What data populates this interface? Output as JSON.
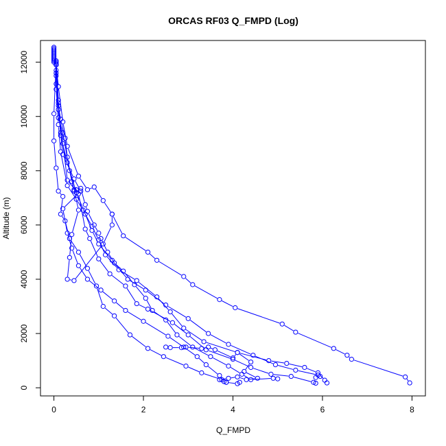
{
  "chart_data": {
    "type": "line",
    "title": "ORCAS RF03 Q_FMPD (Log)",
    "xlabel": "Q_FMPD",
    "ylabel": "Altitude (m)",
    "xlim": [
      -0.3,
      8.3
    ],
    "ylim": [
      -300,
      12800
    ],
    "xticks": [
      0,
      2,
      4,
      6,
      8
    ],
    "yticks": [
      0,
      2000,
      4000,
      6000,
      8000,
      10000,
      12000
    ],
    "grid": false,
    "series_color": "#0000ff",
    "series": [
      {
        "values": [
          [
            0.0,
            12550
          ],
          [
            0.0,
            12500
          ],
          [
            0.0,
            12450
          ],
          [
            0.0,
            12400
          ],
          [
            0.0,
            12350
          ],
          [
            0.0,
            12300
          ],
          [
            0.0,
            12250
          ],
          [
            0.0,
            12200
          ],
          [
            0.0,
            12150
          ],
          [
            0.0,
            12100
          ],
          [
            0.0,
            12050
          ],
          [
            0.0,
            12000
          ]
        ]
      },
      {
        "values": [
          [
            0.05,
            11900
          ],
          [
            0.05,
            11600
          ],
          [
            0.05,
            11200
          ],
          [
            0.1,
            10400
          ],
          [
            0.15,
            9900
          ],
          [
            0.25,
            9200
          ],
          [
            0.3,
            8500
          ],
          [
            0.4,
            7600
          ],
          [
            0.45,
            7250
          ],
          [
            0.5,
            7300
          ],
          [
            0.6,
            7350
          ],
          [
            0.7,
            6750
          ],
          [
            0.75,
            6500
          ],
          [
            0.9,
            6000
          ],
          [
            1.0,
            5700
          ],
          [
            1.05,
            5500
          ],
          [
            1.2,
            5000
          ],
          [
            1.35,
            4600
          ],
          [
            1.55,
            4300
          ],
          [
            1.8,
            3800
          ],
          [
            2.05,
            3300
          ],
          [
            2.2,
            2850
          ],
          [
            2.5,
            2500
          ],
          [
            2.75,
            1950
          ],
          [
            3.1,
            1500
          ],
          [
            3.5,
            1150
          ],
          [
            3.9,
            800
          ],
          [
            4.2,
            500
          ],
          [
            4.4,
            300
          ],
          [
            4.9,
            350
          ],
          [
            5.0,
            330
          ]
        ]
      },
      {
        "values": [
          [
            0.05,
            11900
          ],
          [
            0.1,
            11100
          ],
          [
            0.2,
            9800
          ],
          [
            0.3,
            8900
          ],
          [
            0.55,
            7800
          ],
          [
            0.75,
            7300
          ],
          [
            0.9,
            7400
          ],
          [
            1.1,
            6900
          ],
          [
            1.3,
            6400
          ],
          [
            1.55,
            5600
          ],
          [
            2.1,
            5000
          ],
          [
            2.3,
            4700
          ],
          [
            2.9,
            4100
          ],
          [
            3.1,
            3800
          ],
          [
            3.7,
            3250
          ],
          [
            4.05,
            2950
          ],
          [
            5.1,
            2350
          ],
          [
            5.4,
            2050
          ],
          [
            6.25,
            1450
          ],
          [
            6.55,
            1200
          ],
          [
            6.65,
            1050
          ],
          [
            7.85,
            400
          ],
          [
            7.95,
            180
          ]
        ]
      },
      {
        "values": [
          [
            0.05,
            12050
          ],
          [
            0.0,
            10100
          ],
          [
            0.0,
            9100
          ],
          [
            0.05,
            8100
          ],
          [
            0.1,
            7250
          ],
          [
            0.2,
            7050
          ],
          [
            0.15,
            6400
          ],
          [
            0.25,
            6150
          ],
          [
            0.35,
            5500
          ],
          [
            0.55,
            5000
          ],
          [
            0.75,
            4400
          ],
          [
            0.95,
            3750
          ],
          [
            1.1,
            3000
          ],
          [
            1.35,
            2650
          ],
          [
            1.7,
            1950
          ],
          [
            2.1,
            1450
          ],
          [
            2.45,
            1150
          ],
          [
            2.95,
            800
          ],
          [
            3.3,
            550
          ],
          [
            3.75,
            300
          ],
          [
            3.85,
            200
          ],
          [
            4.1,
            150
          ],
          [
            4.15,
            200
          ]
        ]
      },
      {
        "values": [
          [
            0.05,
            12000
          ],
          [
            0.1,
            10600
          ],
          [
            0.15,
            9400
          ],
          [
            0.2,
            8600
          ],
          [
            0.45,
            7700
          ],
          [
            0.6,
            7250
          ],
          [
            0.2,
            6600
          ],
          [
            0.3,
            5700
          ],
          [
            0.4,
            5150
          ],
          [
            0.55,
            4500
          ],
          [
            0.75,
            4000
          ],
          [
            1.05,
            3600
          ],
          [
            1.35,
            3200
          ],
          [
            1.6,
            2850
          ],
          [
            2.0,
            2450
          ],
          [
            2.55,
            1900
          ],
          [
            2.9,
            1500
          ],
          [
            3.2,
            1150
          ],
          [
            3.4,
            850
          ],
          [
            3.7,
            450
          ],
          [
            3.8,
            230
          ],
          [
            3.85,
            200
          ]
        ]
      },
      {
        "values": [
          [
            0.05,
            11700
          ],
          [
            0.1,
            10250
          ],
          [
            0.2,
            9000
          ],
          [
            0.3,
            7650
          ],
          [
            0.55,
            7150
          ],
          [
            0.7,
            5850
          ],
          [
            0.8,
            5500
          ],
          [
            1.0,
            4750
          ],
          [
            1.25,
            4200
          ],
          [
            1.6,
            3750
          ],
          [
            1.85,
            3100
          ],
          [
            2.1,
            2900
          ],
          [
            2.65,
            2400
          ],
          [
            3.0,
            1950
          ],
          [
            3.4,
            1400
          ],
          [
            4.0,
            1050
          ],
          [
            4.4,
            750
          ],
          [
            4.85,
            500
          ],
          [
            5.3,
            420
          ],
          [
            5.8,
            200
          ],
          [
            5.85,
            170
          ]
        ]
      },
      {
        "values": [
          [
            0.05,
            11500
          ],
          [
            0.1,
            9700
          ],
          [
            0.15,
            8700
          ],
          [
            0.3,
            7450
          ],
          [
            0.5,
            6950
          ],
          [
            0.65,
            6550
          ],
          [
            0.85,
            5950
          ],
          [
            1.0,
            5450
          ],
          [
            1.15,
            4900
          ],
          [
            1.45,
            4350
          ],
          [
            1.85,
            3950
          ],
          [
            2.3,
            3350
          ],
          [
            2.6,
            2800
          ],
          [
            2.9,
            2200
          ],
          [
            3.35,
            1700
          ],
          [
            4.1,
            1300
          ],
          [
            4.8,
            1000
          ],
          [
            5.2,
            900
          ],
          [
            5.6,
            750
          ],
          [
            5.9,
            550
          ],
          [
            6.05,
            280
          ],
          [
            6.1,
            180
          ]
        ]
      },
      {
        "values": [
          [
            0.05,
            11900
          ],
          [
            0.1,
            10500
          ],
          [
            0.15,
            9300
          ],
          [
            0.3,
            8300
          ],
          [
            0.5,
            7200
          ],
          [
            0.7,
            6400
          ],
          [
            0.85,
            5800
          ],
          [
            1.0,
            5300
          ],
          [
            1.3,
            4700
          ],
          [
            1.65,
            4000
          ],
          [
            2.05,
            3600
          ],
          [
            2.5,
            3050
          ],
          [
            3.0,
            2550
          ],
          [
            3.45,
            2000
          ],
          [
            3.9,
            1600
          ],
          [
            4.45,
            1200
          ],
          [
            4.95,
            850
          ],
          [
            5.4,
            650
          ],
          [
            5.9,
            470
          ],
          [
            5.95,
            420
          ],
          [
            5.85,
            380
          ]
        ]
      },
      {
        "values": [
          [
            0.05,
            11950
          ],
          [
            0.05,
            11000
          ],
          [
            0.1,
            9950
          ],
          [
            0.2,
            9400
          ],
          [
            0.35,
            8000
          ],
          [
            0.45,
            7300
          ],
          [
            0.55,
            6550
          ],
          [
            0.4,
            5650
          ],
          [
            0.35,
            4800
          ],
          [
            0.3,
            4000
          ],
          [
            0.45,
            3950
          ],
          [
            1.1,
            5300
          ],
          [
            1.3,
            6000
          ],
          [
            1.3,
            6400
          ]
        ]
      },
      {
        "values": [
          [
            2.5,
            1500
          ],
          [
            2.6,
            1480
          ],
          [
            2.85,
            1480
          ],
          [
            2.95,
            1500
          ],
          [
            3.3,
            1450
          ],
          [
            3.45,
            1500
          ],
          [
            3.6,
            1400
          ],
          [
            4.0,
            1100
          ],
          [
            4.1,
            1300
          ],
          [
            4.4,
            950
          ],
          [
            4.25,
            600
          ],
          [
            4.55,
            350
          ],
          [
            4.3,
            300
          ],
          [
            4.1,
            400
          ],
          [
            3.9,
            350
          ],
          [
            3.7,
            300
          ]
        ]
      }
    ]
  }
}
